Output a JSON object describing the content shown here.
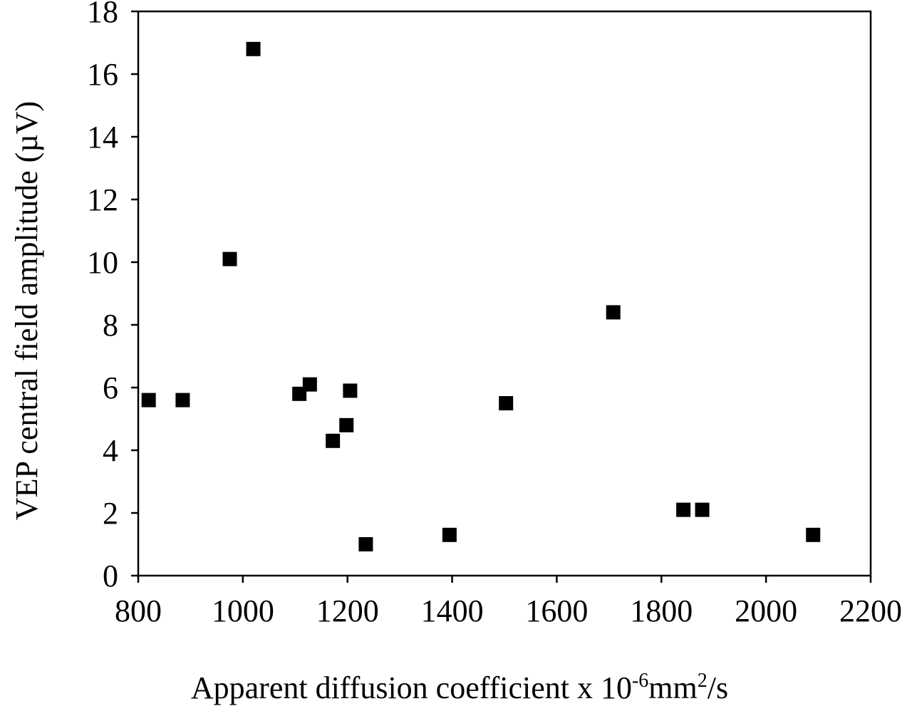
{
  "chart_data": {
    "type": "scatter",
    "title": "",
    "xlabel": {
      "prefix": "Apparent diffusion coefficient x 10",
      "exp1": "-6",
      "mid": "mm",
      "exp2": "2",
      "suffix": "/s"
    },
    "ylabel": "VEP central field amplitude (µV)",
    "xlim": [
      800,
      2200
    ],
    "ylim": [
      0,
      18
    ],
    "xticks": [
      800,
      1000,
      1200,
      1400,
      1600,
      1800,
      2000,
      2200
    ],
    "yticks": [
      0,
      2,
      4,
      6,
      8,
      10,
      12,
      14,
      16,
      18
    ],
    "grid": false,
    "marker": "square",
    "marker_color": "#000000",
    "series": [
      {
        "points": [
          {
            "x": 820,
            "y": 5.6
          },
          {
            "x": 885,
            "y": 5.6
          },
          {
            "x": 975,
            "y": 10.1
          },
          {
            "x": 1020,
            "y": 16.8
          },
          {
            "x": 1108,
            "y": 5.8
          },
          {
            "x": 1128,
            "y": 6.1
          },
          {
            "x": 1172,
            "y": 4.3
          },
          {
            "x": 1198,
            "y": 4.8
          },
          {
            "x": 1205,
            "y": 5.9
          },
          {
            "x": 1235,
            "y": 1.0
          },
          {
            "x": 1395,
            "y": 1.3
          },
          {
            "x": 1503,
            "y": 5.5
          },
          {
            "x": 1708,
            "y": 8.4
          },
          {
            "x": 1842,
            "y": 2.1
          },
          {
            "x": 1878,
            "y": 2.1
          },
          {
            "x": 2090,
            "y": 1.3
          }
        ]
      }
    ]
  }
}
